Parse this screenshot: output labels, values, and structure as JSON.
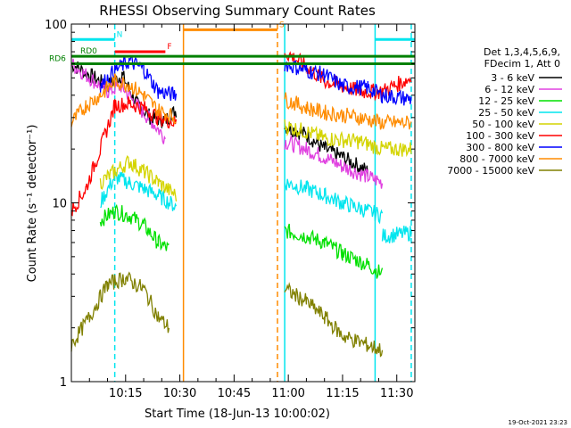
{
  "chart_data": {
    "type": "line",
    "title": "RHESSI Observing Summary Count Rates",
    "xlabel": "Start Time (18-Jun-13 10:00:02)",
    "ylabel": "Count Rate (s⁻¹ detector⁻¹)",
    "ylim": [
      1,
      100
    ],
    "yscale": "log",
    "xlim_minutes": [
      0,
      95
    ],
    "x_ticks": [
      {
        "m": 15,
        "label": "10:15"
      },
      {
        "m": 30,
        "label": "10:30"
      },
      {
        "m": 45,
        "label": "10:45"
      },
      {
        "m": 60,
        "label": "11:00"
      },
      {
        "m": 75,
        "label": "11:15"
      },
      {
        "m": 90,
        "label": "11:30"
      }
    ],
    "y_ticks": [
      {
        "v": 1,
        "label": "1"
      },
      {
        "v": 10,
        "label": "10"
      },
      {
        "v": 100,
        "label": "100"
      }
    ],
    "legend_header": [
      "Det 1,3,4,5,6,9,",
      "FDecim 1, Att 0"
    ],
    "legend_position": "right",
    "series": [
      {
        "name": "3 - 6 keV",
        "color": "#000000",
        "segments": [
          [
            [
              0,
              60
            ],
            [
              10,
              45
            ],
            [
              14,
              52
            ],
            [
              18,
              36
            ],
            [
              22,
              30
            ],
            [
              26,
              29
            ],
            [
              29,
              33
            ]
          ],
          [
            [
              59,
              27
            ],
            [
              65,
              24
            ],
            [
              70,
              20
            ],
            [
              75,
              18
            ],
            [
              82,
              15
            ]
          ]
        ]
      },
      {
        "name": "6 - 12 keV",
        "color": "#e040e0",
        "segments": [
          [
            [
              0,
              60
            ],
            [
              10,
              42
            ],
            [
              14,
              45
            ],
            [
              18,
              35
            ],
            [
              22,
              29
            ],
            [
              26,
              23
            ]
          ],
          [
            [
              59,
              22
            ],
            [
              65,
              20
            ],
            [
              70,
              18
            ],
            [
              75,
              16
            ],
            [
              82,
              14
            ],
            [
              86,
              13
            ]
          ]
        ]
      },
      {
        "name": "12 - 25 keV",
        "color": "#00e000",
        "segments": [
          [
            [
              8,
              8
            ],
            [
              12,
              9
            ],
            [
              16,
              8.5
            ],
            [
              20,
              7.5
            ],
            [
              24,
              6
            ],
            [
              27,
              5.5
            ]
          ],
          [
            [
              59,
              7
            ],
            [
              65,
              6.5
            ],
            [
              70,
              6
            ],
            [
              75,
              5.2
            ],
            [
              82,
              4.5
            ],
            [
              86,
              4
            ]
          ]
        ]
      },
      {
        "name": "25 - 50 keV",
        "color": "#00e5ee",
        "segments": [
          [
            [
              8,
              10
            ],
            [
              12,
              14
            ],
            [
              16,
              13
            ],
            [
              20,
              12
            ],
            [
              24,
              11
            ],
            [
              29,
              9.5
            ]
          ],
          [
            [
              59,
              13
            ],
            [
              65,
              12
            ],
            [
              70,
              11
            ],
            [
              75,
              10
            ],
            [
              82,
              9
            ],
            [
              86,
              8.5
            ]
          ],
          [
            [
              86,
              6.5
            ],
            [
              94,
              6.8
            ]
          ]
        ]
      },
      {
        "name": "50 - 100 keV",
        "color": "#d4d400",
        "segments": [
          [
            [
              8,
              13
            ],
            [
              12,
              15
            ],
            [
              16,
              17
            ],
            [
              20,
              15
            ],
            [
              24,
              13
            ],
            [
              29,
              11
            ]
          ],
          [
            [
              59,
              27
            ],
            [
              65,
              25
            ],
            [
              70,
              23
            ],
            [
              80,
              22
            ],
            [
              86,
              20
            ],
            [
              94,
              20
            ]
          ]
        ]
      },
      {
        "name": "100 - 300 keV",
        "color": "#ff0000",
        "segments": [
          [
            [
              0,
              9
            ],
            [
              4,
              12
            ],
            [
              8,
              20
            ],
            [
              12,
              35
            ],
            [
              16,
              36
            ],
            [
              20,
              34
            ],
            [
              24,
              30
            ],
            [
              29,
              28
            ]
          ],
          [
            [
              59,
              70
            ],
            [
              65,
              58
            ],
            [
              70,
              48
            ],
            [
              80,
              42
            ],
            [
              86,
              42
            ],
            [
              94,
              50
            ]
          ]
        ]
      },
      {
        "name": "300 - 800 keV",
        "color": "#0000ff",
        "segments": [
          [
            [
              8,
              45
            ],
            [
              12,
              55
            ],
            [
              16,
              62
            ],
            [
              20,
              56
            ],
            [
              24,
              42
            ],
            [
              29,
              40
            ]
          ],
          [
            [
              59,
              60
            ],
            [
              65,
              55
            ],
            [
              70,
              52
            ],
            [
              75,
              45
            ],
            [
              82,
              44
            ],
            [
              86,
              40
            ],
            [
              94,
              38
            ]
          ]
        ]
      },
      {
        "name": "800 - 7000 keV",
        "color": "#ff8c00",
        "segments": [
          [
            [
              0,
              28
            ],
            [
              4,
              35
            ],
            [
              8,
              40
            ],
            [
              12,
              48
            ],
            [
              16,
              46
            ],
            [
              20,
              40
            ],
            [
              24,
              33
            ],
            [
              29,
              30
            ]
          ],
          [
            [
              59,
              38
            ],
            [
              65,
              34
            ],
            [
              70,
              32
            ],
            [
              80,
              30
            ],
            [
              86,
              28
            ],
            [
              94,
              28
            ]
          ]
        ]
      },
      {
        "name": "7000 - 15000 keV",
        "color": "#808000",
        "segments": [
          [
            [
              0,
              1.6
            ],
            [
              5,
              2.3
            ],
            [
              10,
              3.5
            ],
            [
              15,
              3.8
            ],
            [
              20,
              3.3
            ],
            [
              24,
              2.3
            ],
            [
              27,
              2
            ]
          ],
          [
            [
              59,
              3.3
            ],
            [
              65,
              2.8
            ],
            [
              70,
              2.3
            ],
            [
              75,
              1.8
            ],
            [
              82,
              1.6
            ],
            [
              86,
              1.5
            ]
          ]
        ]
      }
    ],
    "attenuator_bars": [
      {
        "label": "N",
        "color": "#00e5ee",
        "x0": 0,
        "x1": 12,
        "y": 82
      },
      {
        "label": "F",
        "color": "#ff0000",
        "x0": 12,
        "x1": 26,
        "y": 70
      },
      {
        "label": "S",
        "color": "#ff8c00",
        "x0": 31,
        "x1": 57,
        "y": 93
      },
      {
        "label": "RD0",
        "color": "#008000",
        "x0": 0,
        "x1": 95,
        "y": 66
      },
      {
        "label": "RD6",
        "color": "#008000",
        "x0": 0,
        "x1": 95,
        "y": 60
      },
      {
        "label": "",
        "color": "#00e5ee",
        "x0": 84,
        "x1": 95,
        "y": 82
      }
    ],
    "vertical_markers": [
      {
        "m": 12,
        "color": "#00e5ee",
        "style": "dashed"
      },
      {
        "m": 31,
        "color": "#ff8c00",
        "style": "solid"
      },
      {
        "m": 57,
        "color": "#ff8c00",
        "style": "dashed"
      },
      {
        "m": 59,
        "color": "#00e5ee",
        "style": "solid"
      },
      {
        "m": 84,
        "color": "#00e5ee",
        "style": "solid"
      },
      {
        "m": 94,
        "color": "#00e5ee",
        "style": "dashed"
      }
    ]
  },
  "footer_timestamp": "19-Oct-2021 23:23"
}
